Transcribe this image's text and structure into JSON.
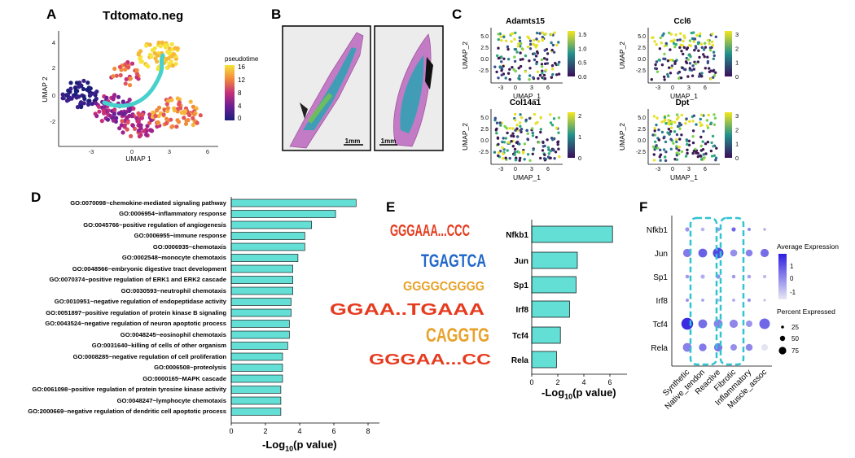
{
  "panel_labels": {
    "A": "A",
    "B": "B",
    "C": "C",
    "D": "D",
    "E": "E",
    "F": "F"
  },
  "panelA": {
    "title": "Tdtomato.neg",
    "xlabel": "UMAP 1",
    "ylabel": "UMAP 2",
    "xticks": [
      "-3",
      "0",
      "3",
      "6"
    ],
    "yticks": [
      "4",
      "2",
      "0",
      "-2"
    ],
    "legend_title": "pseudotime",
    "legend_ticks": [
      "16",
      "12",
      "8",
      "4",
      "0"
    ],
    "colors": {
      "low": "#1b1e78",
      "mid": "#c6307a",
      "high": "#f6e33b",
      "path": "#48d1cc"
    }
  },
  "panelB": {
    "scale_left": "1mm",
    "scale_right": "1mm"
  },
  "panelC": {
    "xlabel": "UMAP_1",
    "ylabel": "UMAP_2",
    "xticks": [
      "-3",
      "0",
      "3",
      "6"
    ],
    "yticks": [
      "5.0",
      "2.5",
      "0.0",
      "-2.5"
    ],
    "plots": [
      {
        "gene": "Adamts15",
        "scale": [
          "1.5",
          "1.0",
          "0.5",
          "0.0"
        ]
      },
      {
        "gene": "Ccl6",
        "scale": [
          "3",
          "2",
          "1",
          "0"
        ]
      },
      {
        "gene": "Col14a1",
        "scale": [
          "2",
          "1",
          "0"
        ]
      },
      {
        "gene": "Dpt",
        "scale": [
          "3",
          "2",
          "1",
          "0"
        ]
      }
    ]
  },
  "panelD": {
    "xlabel_prefix": "-Log",
    "xlabel_sub": "10",
    "xlabel_suffix": "(p value)",
    "bar_color": "#63dfd6",
    "xticks": [
      "0",
      "2",
      "4",
      "6",
      "8"
    ]
  },
  "panelE": {
    "xlabel_prefix": "-Log",
    "xlabel_sub": "10",
    "xlabel_suffix": "(p value)",
    "xticks": [
      "0",
      "2",
      "4",
      "6"
    ],
    "motifs": [
      {
        "name": "Nfkb1",
        "logo": "GGGAAA...CCC"
      },
      {
        "name": "Jun",
        "logo": "TGAGTCA"
      },
      {
        "name": "Sp1",
        "logo": "GGGGCGGGG"
      },
      {
        "name": "Irf8",
        "logo": "GGAA..TGAAA"
      },
      {
        "name": "Tcf4",
        "logo": "CAGGTG"
      },
      {
        "name": "Rela",
        "logo": "GGGAA...CC"
      }
    ]
  },
  "panelF": {
    "genes": [
      "Nfkb1",
      "Jun",
      "Sp1",
      "Irf8",
      "Tcf4",
      "Rela"
    ],
    "groups": [
      "Synthetic",
      "Native_tendon",
      "Reactive",
      "Fibrotic",
      "Inflammatory",
      "Muscle_assoc"
    ],
    "legend_expr_title": "Average Expression",
    "legend_expr_ticks": [
      "1",
      "0",
      "-1"
    ],
    "legend_pct_title": "Percent Expressed",
    "legend_pct_ticks": [
      "25",
      "50",
      "75"
    ],
    "colors": {
      "high": "#2d1ee0",
      "low": "#dcdcf0",
      "highlight": "#30c3d2"
    }
  },
  "chart_data": [
    {
      "type": "bar",
      "orientation": "horizontal",
      "categories": [
        "GO:0070098~chemokine-mediated signaling pathway",
        "GO:0006954~inflammatory response",
        "GO:0045766~positive regulation of angiogenesis",
        "GO:0006955~immune response",
        "GO:0006935~chemotaxis",
        "GO:0002548~monocyte chemotaxis",
        "GO:0048566~embryonic digestive tract development",
        "GO:0070374~positive regulation of ERK1 and ERK2 cascade",
        "GO:0030593~neutrophil chemotaxis",
        "GO:0010951~negative regulation of endopeptidase activity",
        "GO:0051897~positive regulation of protein kinase B signaling",
        "GO:0043524~negative regulation of neuron apoptotic process",
        "GO:0048245~eosinophil chemotaxis",
        "GO:0031640~killing of cells of other organism",
        "GO:0008285~negative regulation of cell proliferation",
        "GO:0006508~proteolysis",
        "GO:0000165~MAPK cascade",
        "GO:0061098~positive regulation of protein tyrosine kinase activity",
        "GO:0048247~lymphocyte chemotaxis",
        "GO:2000669~negative regulation of dendritic cell apoptotic process"
      ],
      "values": [
        7.3,
        6.1,
        4.7,
        4.3,
        4.3,
        3.9,
        3.6,
        3.6,
        3.6,
        3.5,
        3.5,
        3.4,
        3.4,
        3.3,
        3.0,
        3.0,
        3.0,
        2.9,
        2.9,
        2.9
      ],
      "xlabel": "-Log10(p value)",
      "xlim": [
        0,
        8
      ]
    },
    {
      "type": "bar",
      "orientation": "horizontal",
      "categories": [
        "Nfkb1",
        "Jun",
        "Sp1",
        "Irf8",
        "Tcf4",
        "Rela"
      ],
      "values": [
        6.2,
        3.5,
        3.4,
        2.9,
        2.2,
        1.9
      ],
      "xlabel": "-Log10(p value)",
      "xlim": [
        0,
        7
      ]
    },
    {
      "type": "dotplot",
      "genes": [
        "Nfkb1",
        "Jun",
        "Sp1",
        "Irf8",
        "Tcf4",
        "Rela"
      ],
      "groups": [
        "Synthetic",
        "Native_tendon",
        "Reactive",
        "Fibrotic",
        "Inflammatory",
        "Muscle_assoc"
      ],
      "avg_expression": [
        [
          0.2,
          -0.3,
          0.1,
          0.9,
          0.4,
          0.0
        ],
        [
          0.6,
          1.0,
          1.4,
          0.3,
          0.5,
          0.8
        ],
        [
          0.1,
          -0.2,
          0.3,
          0.1,
          0.0,
          -0.3
        ],
        [
          0.2,
          0.0,
          -0.4,
          -0.1,
          0.3,
          -0.5
        ],
        [
          1.8,
          0.8,
          0.5,
          0.4,
          0.2,
          0.9
        ],
        [
          0.5,
          0.6,
          0.7,
          0.3,
          0.4,
          -1.0
        ]
      ],
      "pct_expressed": [
        [
          20,
          15,
          15,
          20,
          12,
          5
        ],
        [
          55,
          60,
          75,
          45,
          45,
          55
        ],
        [
          15,
          20,
          20,
          15,
          15,
          12
        ],
        [
          12,
          10,
          8,
          10,
          12,
          5
        ],
        [
          85,
          60,
          60,
          55,
          40,
          75
        ],
        [
          60,
          50,
          55,
          40,
          45,
          40
        ]
      ]
    }
  ]
}
